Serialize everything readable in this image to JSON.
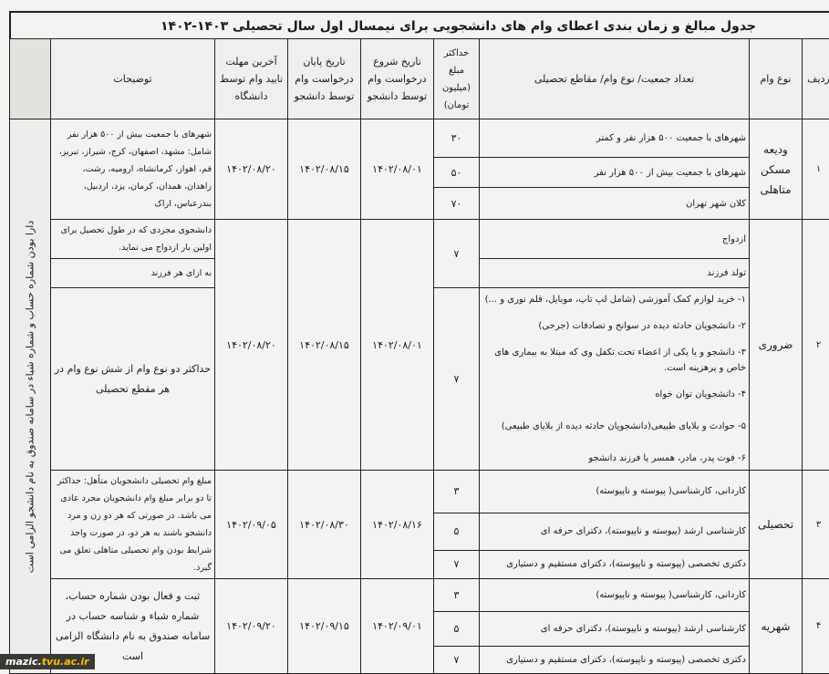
{
  "title": "جدول مبالغ و زمان بندی اعطای وام های دانشجویی برای نیمسال اول سال تحصیلی ۱۴۰۳-۱۴۰۲",
  "headers": {
    "row_no": "ردیف",
    "loan_type": "نوع وام",
    "category": "تعداد جمعیت/ نوع وام/ مقاطع تحصیلی",
    "max_amount": "حداکثر مبلغ (میلیون تومان)",
    "start_date": "تاریخ شروع درخواست وام توسط دانشجو",
    "end_date": "تاریخ پایان درخواست وام توسط دانشجو",
    "deadline": "آخرین مهلت تایید وام توسط دانشگاه",
    "notes": "توضیحات"
  },
  "side_note": "دارا بودن شماره حساب و شماره شباء در سامانه صندوق به نام دانشجو الزامی است",
  "rows": [
    {
      "no": "۱",
      "type": "ودیعه مسکن متاهلی",
      "items": [
        "شهرهای با جمعیت ۵۰۰ هزار نفر و کمتر",
        "شهرهای با جمعیت بیش از ۵۰۰ هزار نفر",
        "کلان شهر تهران"
      ],
      "amounts": [
        "۳۰",
        "۵۰",
        "۷۰"
      ],
      "start": "۱۴۰۲/۰۸/۰۱",
      "end": "۱۴۰۲/۰۸/۱۵",
      "deadline": "۱۴۰۲/۰۸/۲۰",
      "notes": [
        "شهرهای با جمعیت بیش از ۵۰۰ هزار نفر شامل: مشهد، اصفهان، کرج، شیراز، تبریز، قم، اهواز، کرمانشاه، ارومیه، رشت، زاهدان، همدان، کرمان، یزد، اردبیل، بندرعباس، اراک"
      ]
    },
    {
      "no": "۲",
      "type": "ضروری",
      "items": [
        "ازدواج",
        "تولد فرزند"
      ],
      "list": [
        "۱- خرید لوازم کمک آموزشی (شامل لپ تاپ، موبایل، قلم نوری و ...)",
        "۲- دانشجویان حادثه دیده در سوانح و تصادفات (جرحی)",
        "۳- دانشجو و یا یکی از اعضاء تحت تکفل وی که مبتلا به بیماری های خاص و پرهزینه است.",
        "۴- دانشجویان توان خواه",
        "۵- حوادث و بلایای طبیعی(دانشجویان حادثه دیده از بلایای طبیعی)",
        "۶- فوت پدر، مادر، همسر یا فرزند دانشجو"
      ],
      "amounts": [
        "۷",
        "۷"
      ],
      "start": "۱۴۰۲/۰۸/۰۱",
      "end": "۱۴۰۲/۰۸/۱۵",
      "deadline": "۱۴۰۲/۰۸/۲۰",
      "notes": [
        "دانشجوی مجردی که در طول تحصیل برای اولین بار ازدواج می نماید.",
        "به ازای هر فرزند",
        "حداکثر دو نوع وام از شش نوع وام در هر مقطع تحصیلی"
      ]
    },
    {
      "no": "۳",
      "type": "تحصیلی",
      "items": [
        "کاردانی، کارشناسی( پیوسته و ناپیوسته)",
        "کارشناسی ارشد (پیوسته و ناپیوسته)، دکترای حرفه ای",
        "دکتری تخصصی (پیوسته و ناپیوسته)، دکترای مستقیم و دستیاری"
      ],
      "amounts": [
        "۳",
        "۵",
        "۷"
      ],
      "start": "۱۴۰۲/۰۸/۱۶",
      "end": "۱۴۰۲/۰۸/۳۰",
      "deadline": "۱۴۰۲/۰۹/۰۵",
      "notes": [
        "مبلغ وام تحصیلی دانشجویان متأهل: حداکثر تا دو برابر مبلغ وام دانشجویان مجرد عادی می باشد. در صورتی که هر دو زن و مرد دانشجو باشند به هر دو، در صورت واجد شرایط بودن وام تحصیلی متاهلی تعلق می گیرد."
      ]
    },
    {
      "no": "۴",
      "type": "شهریه",
      "items": [
        "کاردانی، کارشناسی( پیوسته و ناپیوسته)",
        "کارشناسی ارشد (پیوسته و ناپیوسته)، دکترای حرفه ای",
        "دکتری تخصصی (پیوسته و ناپیوسته)، دکترای مستقیم و دستیاری"
      ],
      "amounts": [
        "۳",
        "۵",
        "۷"
      ],
      "start": "۱۴۰۲/۰۹/۰۱",
      "end": "۱۴۰۲/۰۹/۱۵",
      "deadline": "۱۴۰۲/۰۹/۲۰",
      "notes": [
        "ثبت و فعال بودن شماره حساب، شماره شباء و شناسه حساب در سامانه صندوق به نام دانشگاه الزامی است"
      ]
    }
  ],
  "watermark": {
    "prefix": "mazic.",
    "suffix": "tvu.ac.ir"
  }
}
